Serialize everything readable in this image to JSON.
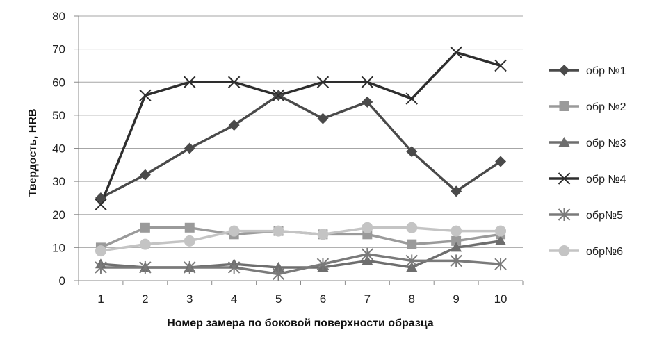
{
  "chart_data": {
    "type": "line",
    "title": "",
    "xlabel": "Номер замера по боковой поверхности образца",
    "ylabel": "Твердость, HRB",
    "categories": [
      "1",
      "2",
      "3",
      "4",
      "5",
      "6",
      "7",
      "8",
      "9",
      "10"
    ],
    "yticks": [
      "0",
      "10",
      "20",
      "30",
      "40",
      "50",
      "60",
      "70",
      "80"
    ],
    "ylim": [
      0,
      80
    ],
    "grid": "horizontal",
    "legend": "right",
    "series": [
      {
        "name": "обр №1",
        "marker": "diamond",
        "color": "#4a4a4a",
        "values": [
          25,
          32,
          40,
          47,
          56,
          49,
          54,
          39,
          27,
          36
        ]
      },
      {
        "name": "обр №2",
        "marker": "square",
        "color": "#9a9a9a",
        "values": [
          10,
          16,
          16,
          14,
          15,
          14,
          14,
          11,
          12,
          14
        ]
      },
      {
        "name": "обр №3",
        "marker": "triangle",
        "color": "#6e6e6e",
        "values": [
          5,
          4,
          4,
          5,
          4,
          4,
          6,
          4,
          10,
          12
        ]
      },
      {
        "name": "обр №4",
        "marker": "x",
        "color": "#2e2e2e",
        "values": [
          23,
          56,
          60,
          60,
          56,
          60,
          60,
          55,
          69,
          65
        ]
      },
      {
        "name": "обр№5",
        "marker": "star",
        "color": "#7a7a7a",
        "values": [
          4,
          4,
          4,
          4,
          2,
          5,
          8,
          6,
          6,
          5
        ]
      },
      {
        "name": "обр№6",
        "marker": "circle",
        "color": "#c4c4c4",
        "values": [
          9,
          11,
          12,
          15,
          15,
          14,
          16,
          16,
          15,
          15
        ]
      }
    ]
  }
}
